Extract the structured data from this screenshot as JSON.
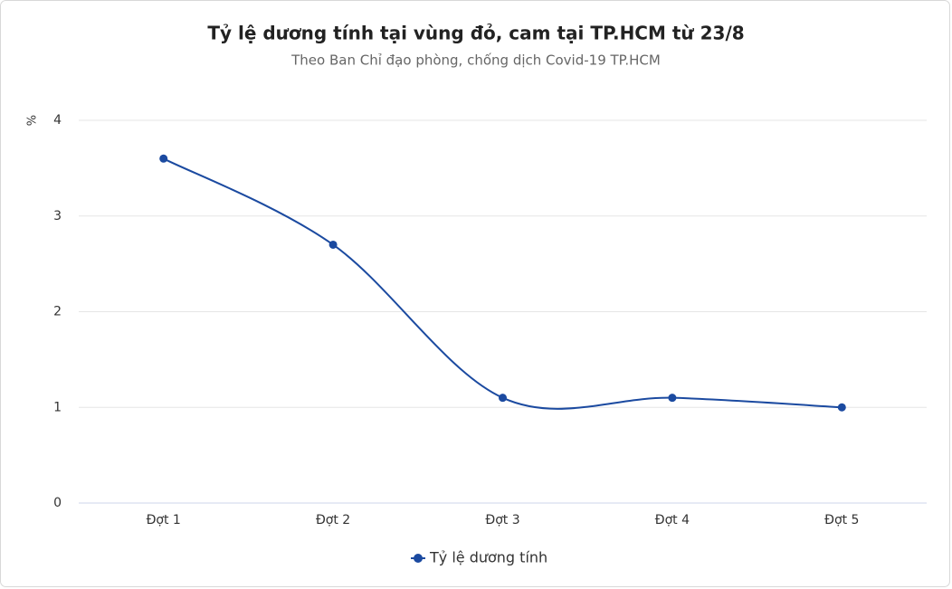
{
  "chart_data": {
    "type": "line",
    "title": "Tỷ lệ dương tính tại vùng đỏ, cam tại TP.HCM từ 23/8",
    "subtitle": "Theo Ban Chỉ đạo phòng, chống dịch Covid-19 TP.HCM",
    "y_label": "%",
    "categories": [
      "Đợt 1",
      "Đợt 2",
      "Đợt 3",
      "Đợt 4",
      "Đợt 5"
    ],
    "series": [
      {
        "name": "Tỷ lệ dương tính",
        "color": "#1b4aa0",
        "values": [
          3.6,
          2.7,
          1.1,
          1.1,
          1.0
        ]
      }
    ],
    "ylim": [
      0,
      4
    ],
    "yticks": [
      0,
      1,
      2,
      3,
      4
    ],
    "grid": true,
    "smooth": true,
    "legend": "bottom"
  }
}
